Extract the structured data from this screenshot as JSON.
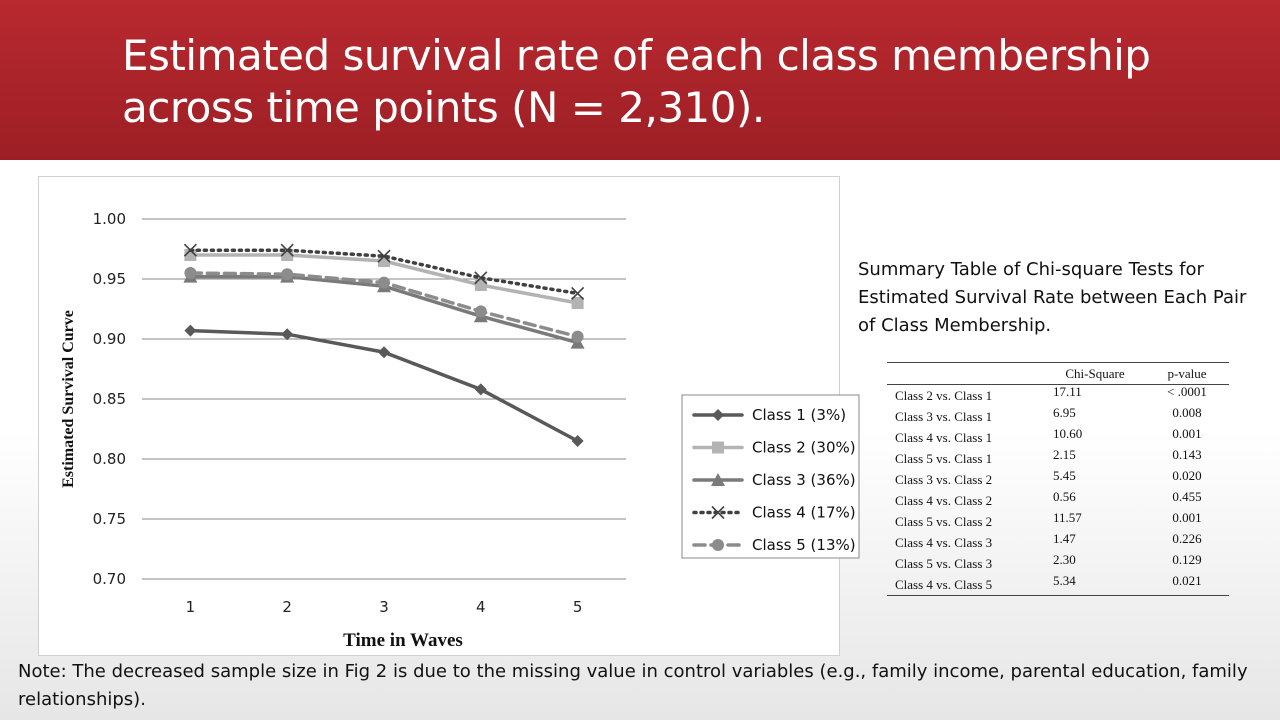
{
  "slide": {
    "title": "Estimated survival rate of each class membership across time points (N = 2,310).",
    "table_title": "Summary Table of Chi-square Tests for Estimated Survival Rate between Each Pair of Class Membership.",
    "note": "Note: The decreased sample size in Fig 2 is due to the missing value in control variables (e.g., family income, parental education, family relationships)."
  },
  "colors": {
    "title_bg": "#b8292f",
    "class1": "#595959",
    "class2": "#b3b3b3",
    "class3": "#7a7a7a",
    "class4": "#404040",
    "class5": "#8c8c8c"
  },
  "chart_data": {
    "type": "line",
    "xlabel": "Time in Waves",
    "ylabel": "Estimated Survival Curve",
    "x": [
      1,
      2,
      3,
      4,
      5
    ],
    "ylim": [
      0.7,
      1.0
    ],
    "yticks": [
      "0.70",
      "0.75",
      "0.80",
      "0.85",
      "0.90",
      "0.95",
      "1.00"
    ],
    "grid": true,
    "legend": "right",
    "series": [
      {
        "name": "Class 1 (3%)",
        "values": [
          0.907,
          0.904,
          0.889,
          0.858,
          0.815
        ],
        "marker": "diamond",
        "dash": "solid"
      },
      {
        "name": "Class 2 (30%)",
        "values": [
          0.97,
          0.97,
          0.965,
          0.945,
          0.93
        ],
        "marker": "square",
        "dash": "solid"
      },
      {
        "name": "Class 3 (36%)",
        "values": [
          0.952,
          0.952,
          0.944,
          0.919,
          0.897
        ],
        "marker": "triangle",
        "dash": "solid"
      },
      {
        "name": "Class 4 (17%)",
        "values": [
          0.974,
          0.974,
          0.969,
          0.951,
          0.938
        ],
        "marker": "x",
        "dash": "dot"
      },
      {
        "name": "Class 5 (13%)",
        "values": [
          0.955,
          0.954,
          0.947,
          0.923,
          0.902
        ],
        "marker": "circle",
        "dash": "dash"
      }
    ]
  },
  "table": {
    "headers": [
      "",
      "Chi-Square",
      "p-value"
    ],
    "rows": [
      [
        "Class 2 vs. Class 1",
        "17.11",
        "< .0001"
      ],
      [
        "Class 3 vs. Class 1",
        "6.95",
        "0.008"
      ],
      [
        "Class 4 vs. Class 1",
        "10.60",
        "0.001"
      ],
      [
        "Class 5 vs. Class 1",
        "2.15",
        "0.143"
      ],
      [
        "Class 3 vs. Class 2",
        "5.45",
        "0.020"
      ],
      [
        "Class 4 vs. Class 2",
        "0.56",
        "0.455"
      ],
      [
        "Class 5 vs. Class 2",
        "11.57",
        "0.001"
      ],
      [
        "Class 4 vs. Class 3",
        "1.47",
        "0.226"
      ],
      [
        "Class 5 vs. Class 3",
        "2.30",
        "0.129"
      ],
      [
        "Class 4 vs. Class 5",
        "5.34",
        "0.021"
      ]
    ]
  }
}
